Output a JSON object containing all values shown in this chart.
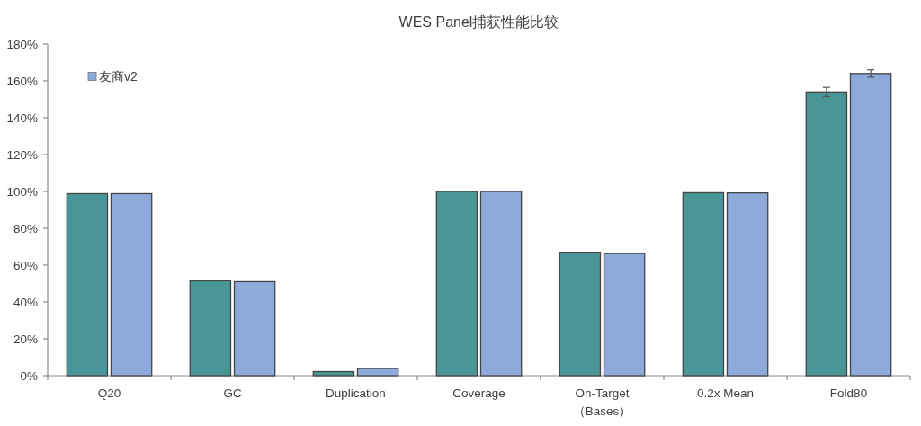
{
  "chart_data": {
    "type": "bar",
    "title": "WES Panel捕获性能比较",
    "categories": [
      "Q20",
      "GC",
      "Duplication",
      "Coverage",
      "On-Target\n（Bases）",
      "0.2x Mean",
      "Fold80"
    ],
    "series": [
      {
        "color": "#4a9595",
        "values": [
          98.8,
          51.5,
          2.2,
          100,
          67,
          99.3,
          154
        ],
        "errors": [
          null,
          null,
          null,
          null,
          null,
          null,
          2.5
        ]
      },
      {
        "name": "友商v2",
        "color": "#8eaadb",
        "values": [
          98.8,
          51,
          3.9,
          100,
          66.3,
          99.2,
          164
        ],
        "errors": [
          null,
          null,
          null,
          null,
          null,
          null,
          2
        ]
      }
    ],
    "ylim": [
      0,
      180
    ],
    "yticks": [
      {
        "value": 0,
        "label": "0%"
      },
      {
        "value": 20,
        "label": "20%"
      },
      {
        "value": 40,
        "label": "40%"
      },
      {
        "value": 60,
        "label": "60%"
      },
      {
        "value": 80,
        "label": "80%"
      },
      {
        "value": 100,
        "label": "100%"
      },
      {
        "value": 120,
        "label": "120%"
      },
      {
        "value": 140,
        "label": "140%"
      },
      {
        "value": 160,
        "label": "160%"
      },
      {
        "value": 180,
        "label": "180%"
      }
    ],
    "legend": "top left"
  }
}
